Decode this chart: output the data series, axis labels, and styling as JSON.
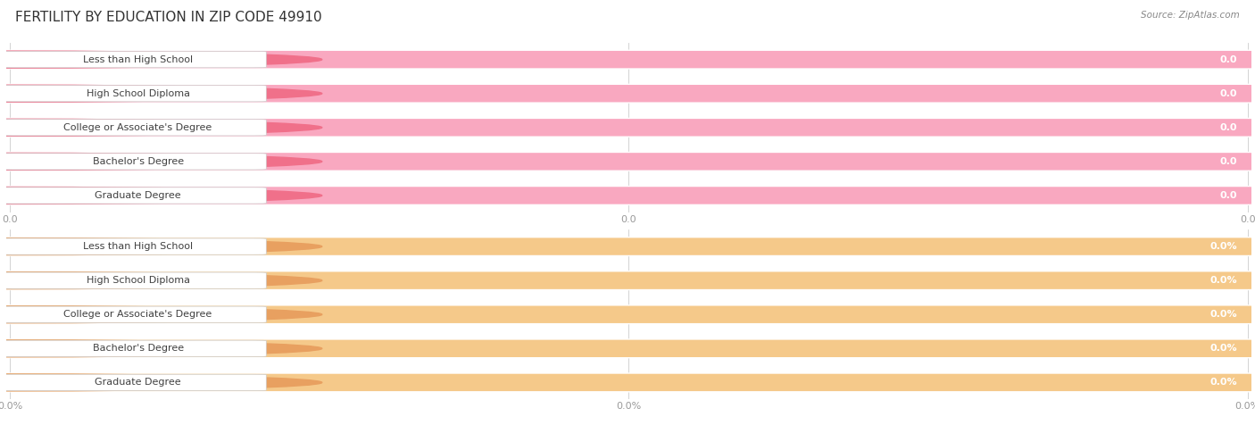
{
  "title": "FERTILITY BY EDUCATION IN ZIP CODE 49910",
  "source_text": "Source: ZipAtlas.com",
  "categories": [
    "Less than High School",
    "High School Diploma",
    "College or Associate's Degree",
    "Bachelor's Degree",
    "Graduate Degree"
  ],
  "top_values": [
    0.0,
    0.0,
    0.0,
    0.0,
    0.0
  ],
  "bottom_values": [
    0.0,
    0.0,
    0.0,
    0.0,
    0.0
  ],
  "top_value_labels": [
    "0.0",
    "0.0",
    "0.0",
    "0.0",
    "0.0"
  ],
  "bottom_value_labels": [
    "0.0%",
    "0.0%",
    "0.0%",
    "0.0%",
    "0.0%"
  ],
  "top_bar_color": "#F9A8C0",
  "bottom_bar_color": "#F5C98A",
  "bar_bg_color": "#E8E8E8",
  "label_bg_color": "#FFFFFF",
  "top_tick_labels": [
    "0.0",
    "0.0",
    "0.0"
  ],
  "bottom_tick_labels": [
    "0.0%",
    "0.0%",
    "0.0%"
  ],
  "title_fontsize": 11,
  "label_fontsize": 8,
  "value_fontsize": 8,
  "tick_fontsize": 8,
  "source_fontsize": 7.5,
  "title_color": "#333333",
  "label_color": "#404040",
  "tick_color": "#999999",
  "source_color": "#888888",
  "background_color": "#FFFFFF",
  "grid_color": "#CCCCCC",
  "top_circle_color": "#F0708A",
  "bottom_circle_color": "#E8A060"
}
